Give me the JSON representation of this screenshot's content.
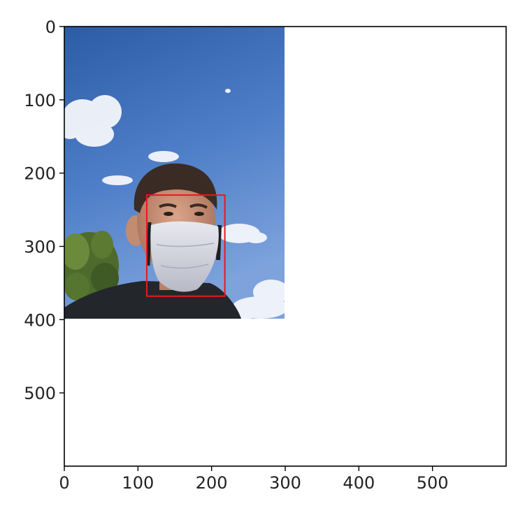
{
  "chart_data": {
    "type": "image",
    "title": "",
    "xlabel": "",
    "ylabel": "",
    "xlim": [
      0,
      600
    ],
    "ylim": [
      600,
      0
    ],
    "y_axis_inverted": true,
    "x_ticks": [
      0,
      100,
      200,
      300,
      400,
      500
    ],
    "y_ticks": [
      0,
      100,
      200,
      300,
      400,
      500
    ],
    "x_tick_labels": [
      "0",
      "100",
      "200",
      "300",
      "400",
      "500"
    ],
    "y_tick_labels": [
      "0",
      "100",
      "200",
      "300",
      "400",
      "500"
    ],
    "grid": false,
    "image": {
      "description": "selfie photo of a man wearing a light grey face mask, blue sky with clouds, tree at lower left",
      "extent_x": [
        0,
        300
      ],
      "extent_y": [
        0,
        400
      ]
    },
    "annotations": [
      {
        "type": "rectangle",
        "label": "face-bounding-box",
        "x": [
          112,
          218
        ],
        "y": [
          230,
          368
        ],
        "color": "#e8191e"
      }
    ]
  },
  "colors": {
    "sky_top": "#2f5fa8",
    "sky_bottom": "#6f97d6",
    "bbox": "#e8191e",
    "axis": "#000000",
    "text": "#222222"
  }
}
